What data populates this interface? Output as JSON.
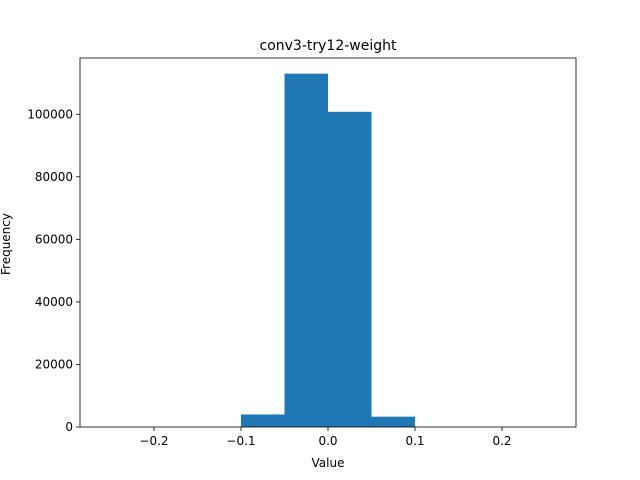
{
  "chart_data": {
    "type": "bar",
    "title": "conv3-try12-weight",
    "xlabel": "Value",
    "ylabel": "Frequency",
    "color": "#1f77b4",
    "bins": [
      {
        "x0": -0.1,
        "x1": -0.05,
        "count": 4000
      },
      {
        "x0": -0.05,
        "x1": 0.0,
        "count": 113000
      },
      {
        "x0": 0.0,
        "x1": 0.05,
        "count": 100800
      },
      {
        "x0": 0.05,
        "x1": 0.1,
        "count": 3300
      }
    ],
    "xlim": [
      -0.285,
      0.285
    ],
    "ylim": [
      0,
      118000
    ],
    "xticks": [
      {
        "value": -0.2,
        "label": "−0.2"
      },
      {
        "value": -0.1,
        "label": "−0.1"
      },
      {
        "value": 0.0,
        "label": "0.0"
      },
      {
        "value": 0.1,
        "label": "0.1"
      },
      {
        "value": 0.2,
        "label": "0.2"
      }
    ],
    "yticks": [
      {
        "value": 0,
        "label": "0"
      },
      {
        "value": 20000,
        "label": "20000"
      },
      {
        "value": 40000,
        "label": "40000"
      },
      {
        "value": 60000,
        "label": "60000"
      },
      {
        "value": 80000,
        "label": "80000"
      },
      {
        "value": 100000,
        "label": "100000"
      }
    ],
    "grid": false,
    "legend": false
  }
}
